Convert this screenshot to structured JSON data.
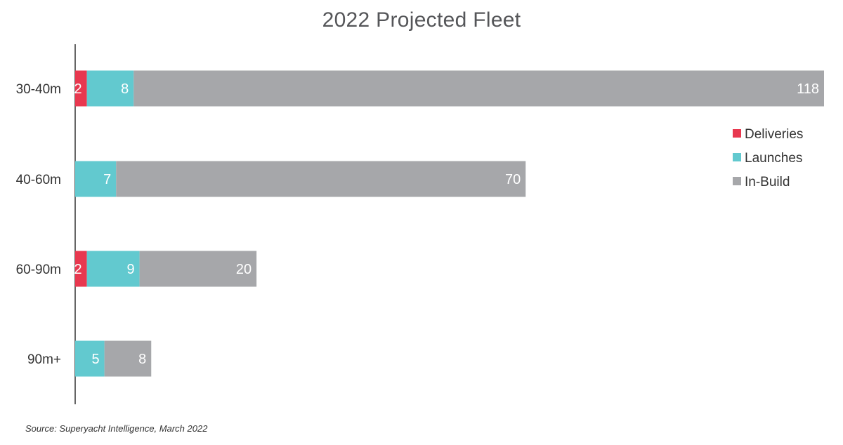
{
  "chart_data": {
    "type": "bar",
    "orientation": "horizontal",
    "stacked": true,
    "title": "2022 Projected Fleet",
    "source": "Source: Superyacht Intelligence, March 2022",
    "categories": [
      "30-40m",
      "40-60m",
      "60-90m",
      "90m+"
    ],
    "series": [
      {
        "name": "Deliveries",
        "color": "#e8384f",
        "values": [
          2,
          0,
          2,
          0
        ],
        "labels": [
          "2",
          "",
          "2",
          ""
        ]
      },
      {
        "name": "Launches",
        "color": "#62c9cf",
        "values": [
          8,
          7,
          9,
          5
        ],
        "labels": [
          "8",
          "7",
          "9",
          "5"
        ]
      },
      {
        "name": "In-Build",
        "color": "#a6a7aa",
        "values": [
          118,
          70,
          20,
          8
        ],
        "labels": [
          "118",
          "70",
          "20",
          "8"
        ]
      }
    ],
    "legend_position": "right",
    "grid": false
  }
}
